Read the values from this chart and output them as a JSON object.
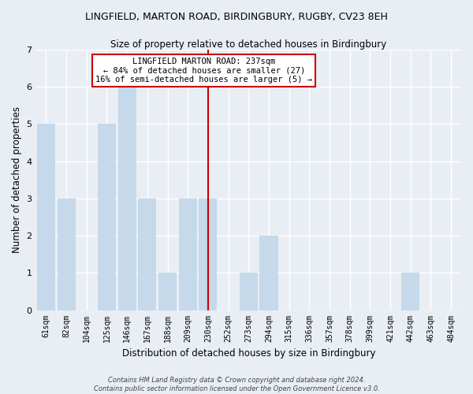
{
  "title": "LINGFIELD, MARTON ROAD, BIRDINGBURY, RUGBY, CV23 8EH",
  "subtitle": "Size of property relative to detached houses in Birdingbury",
  "xlabel": "Distribution of detached houses by size in Birdingbury",
  "ylabel": "Number of detached properties",
  "bar_color": "#c5d9ea",
  "background_color": "#e8eef4",
  "plot_bg_color": "#e8eef4",
  "grid_color": "#ffffff",
  "categories": [
    "61sqm",
    "82sqm",
    "104sqm",
    "125sqm",
    "146sqm",
    "167sqm",
    "188sqm",
    "209sqm",
    "230sqm",
    "252sqm",
    "273sqm",
    "294sqm",
    "315sqm",
    "336sqm",
    "357sqm",
    "378sqm",
    "399sqm",
    "421sqm",
    "442sqm",
    "463sqm",
    "484sqm"
  ],
  "values": [
    5,
    3,
    0,
    5,
    6,
    3,
    1,
    3,
    3,
    0,
    1,
    2,
    0,
    0,
    0,
    0,
    0,
    0,
    1,
    0,
    0
  ],
  "vline_x": 8.0,
  "ylim": [
    0,
    7
  ],
  "yticks": [
    0,
    1,
    2,
    3,
    4,
    5,
    6,
    7
  ],
  "annotation_title": "LINGFIELD MARTON ROAD: 237sqm",
  "annotation_line1": "← 84% of detached houses are smaller (27)",
  "annotation_line2": "16% of semi-detached houses are larger (5) →",
  "footer_line1": "Contains HM Land Registry data © Crown copyright and database right 2024.",
  "footer_line2": "Contains public sector information licensed under the Open Government Licence v3.0."
}
